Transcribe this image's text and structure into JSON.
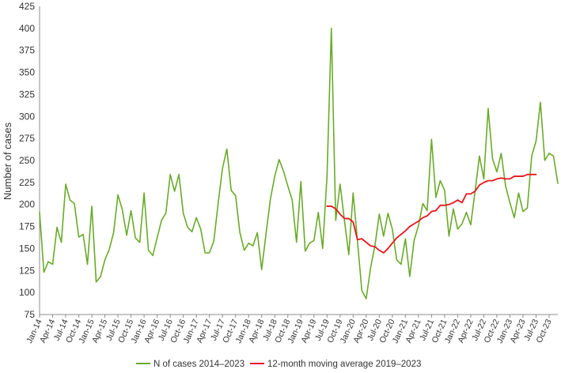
{
  "chart_data": {
    "type": "line",
    "ylabel": "Number of cases",
    "xlabel": "",
    "ylim": [
      75,
      425
    ],
    "yticks": [
      75,
      100,
      125,
      150,
      175,
      200,
      225,
      250,
      275,
      300,
      325,
      350,
      375,
      400,
      425
    ],
    "grid": false,
    "legend_position": "bottom",
    "start_month": "Jan-14",
    "x_tick_labels": [
      "Jan-14",
      "Apr-14",
      "Jul-14",
      "Oct-14",
      "Jan-15",
      "Apr-15",
      "Jul-15",
      "Oct-15",
      "Jan-16",
      "Apr-16",
      "Jul-16",
      "Oct-16",
      "Jan-17",
      "Apr-17",
      "Jul-17",
      "Oct-17",
      "Jan-18",
      "Apr-18",
      "Jul-18",
      "Oct-18",
      "Jan-19",
      "Apr-19",
      "Jul-19",
      "Oct-19",
      "Jan-20",
      "Apr-20",
      "Jul-20",
      "Oct-20",
      "Jan-21",
      "Apr-21",
      "Jul-21",
      "Oct-21",
      "Jan-22",
      "Apr-22",
      "Jul-22",
      "Oct-22",
      "Jan-23",
      "Apr-23",
      "Jul-23",
      "Oct-23"
    ],
    "series": [
      {
        "name": "N of cases 2014–2023",
        "color": "#6aaa2a",
        "start_index": 0,
        "values": [
          191,
          123,
          135,
          132,
          174,
          157,
          223,
          205,
          201,
          163,
          166,
          132,
          198,
          112,
          118,
          137,
          149,
          168,
          211,
          194,
          165,
          193,
          162,
          157,
          213,
          148,
          142,
          162,
          182,
          190,
          234,
          215,
          234,
          190,
          174,
          169,
          185,
          172,
          145,
          145,
          158,
          201,
          241,
          263,
          216,
          210,
          168,
          148,
          156,
          153,
          168,
          126,
          167,
          206,
          232,
          251,
          238,
          221,
          205,
          157,
          226,
          147,
          156,
          159,
          191,
          150,
          232,
          400,
          182,
          223,
          182,
          143,
          213,
          158,
          102,
          93,
          128,
          153,
          189,
          164,
          190,
          172,
          137,
          132,
          161,
          118,
          159,
          176,
          201,
          193,
          274,
          208,
          227,
          216,
          164,
          195,
          172,
          178,
          191,
          177,
          215,
          255,
          229,
          309,
          252,
          237,
          258,
          221,
          202,
          185,
          213,
          192,
          196,
          255,
          272,
          316,
          250,
          258,
          255,
          224
        ]
      },
      {
        "name": "12-month moving average 2019–2023",
        "color": "#e8161b",
        "start_index": 66,
        "values": [
          198,
          198,
          195,
          189,
          184,
          184,
          180,
          160,
          161,
          157,
          153,
          152,
          148,
          145,
          150,
          156,
          162,
          166,
          170,
          175,
          178,
          181,
          185,
          187,
          192,
          193,
          199,
          199,
          200,
          202,
          205,
          202,
          212,
          212,
          215,
          222,
          225,
          227,
          227,
          229,
          230,
          229,
          229,
          232,
          232,
          232,
          234,
          234,
          234
        ]
      }
    ]
  }
}
